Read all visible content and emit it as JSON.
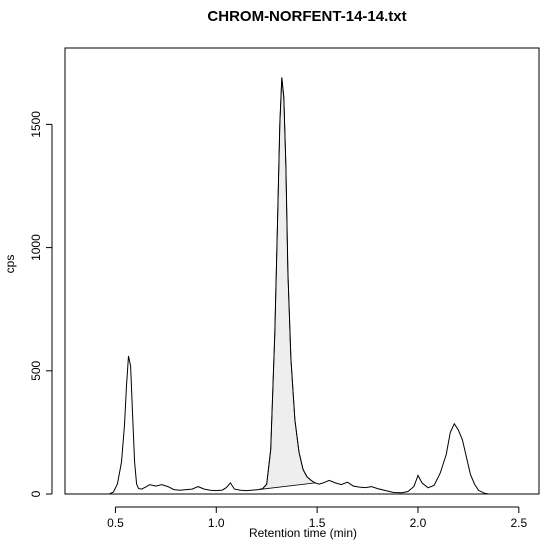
{
  "chart_data": {
    "type": "area",
    "title": "CHROM-NORFENT-14-14.txt",
    "xlabel": "Retention time (min)",
    "ylabel": "cps",
    "xlim": [
      0.25,
      2.6
    ],
    "ylim": [
      0,
      1810
    ],
    "xticks": [
      "0.5",
      "1.0",
      "1.5",
      "2.0",
      "2.5"
    ],
    "yticks": [
      "0",
      "500",
      "1000",
      "1500"
    ],
    "grid": false,
    "series": [
      {
        "x": [
          0.47,
          0.49,
          0.51,
          0.53,
          0.545,
          0.555,
          0.565,
          0.575,
          0.585,
          0.595,
          0.605,
          0.615,
          0.63,
          0.65,
          0.67,
          0.7,
          0.73,
          0.76,
          0.79,
          0.82,
          0.85,
          0.88,
          0.91,
          0.94,
          0.97,
          1.0,
          1.03,
          1.05,
          1.07,
          1.09,
          1.12,
          1.15,
          1.18,
          1.21,
          1.23,
          1.25,
          1.27,
          1.29,
          1.305,
          1.315,
          1.325,
          1.335,
          1.345,
          1.355,
          1.37,
          1.39,
          1.41,
          1.43,
          1.45,
          1.47,
          1.49,
          1.51,
          1.53,
          1.56,
          1.59,
          1.62,
          1.65,
          1.68,
          1.71,
          1.74,
          1.77,
          1.8,
          1.84,
          1.88,
          1.92,
          1.95,
          1.98,
          2.0,
          2.02,
          2.05,
          2.08,
          2.11,
          2.14,
          2.16,
          2.18,
          2.2,
          2.22,
          2.24,
          2.26,
          2.28,
          2.3,
          2.33,
          2.35
        ],
        "values": [
          0,
          8,
          40,
          130,
          280,
          440,
          560,
          520,
          320,
          130,
          40,
          22,
          20,
          28,
          38,
          32,
          38,
          30,
          18,
          15,
          18,
          20,
          30,
          20,
          15,
          14,
          16,
          26,
          45,
          20,
          15,
          14,
          16,
          18,
          22,
          40,
          180,
          650,
          1150,
          1500,
          1690,
          1610,
          1330,
          900,
          550,
          300,
          170,
          100,
          70,
          55,
          45,
          40,
          45,
          55,
          45,
          38,
          48,
          32,
          28,
          26,
          30,
          22,
          14,
          6,
          5,
          10,
          30,
          75,
          45,
          25,
          35,
          85,
          160,
          250,
          285,
          260,
          220,
          150,
          80,
          40,
          15,
          3,
          0
        ]
      }
    ],
    "shaded_region": {
      "x_start": 1.2,
      "x_end": 1.5,
      "fill": "#eeeeee"
    },
    "line_color": "#000000"
  }
}
